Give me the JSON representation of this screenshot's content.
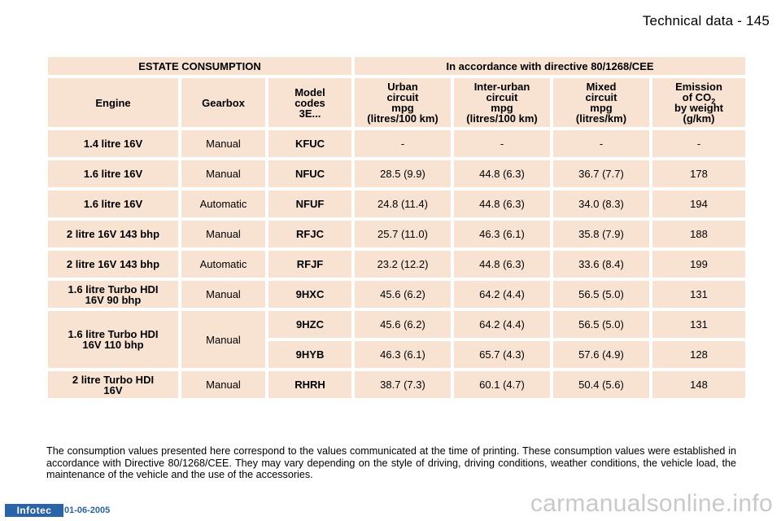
{
  "header": {
    "title": "Technical data - 145"
  },
  "table": {
    "banner_left": "ESTATE CONSUMPTION",
    "banner_right": "In accordance with directive 80/1268/CEE",
    "columns": {
      "engine": "Engine",
      "gearbox": "Gearbox",
      "model_l1": "Model",
      "model_l2": "codes",
      "model_l3": "3E...",
      "urban_l1": "Urban",
      "urban_l2": "circuit",
      "urban_l3": "mpg",
      "urban_l4": "(litres/100 km)",
      "inter_l1": "Inter-urban",
      "inter_l2": "circuit",
      "inter_l3": "mpg",
      "inter_l4": "(litres/100 km)",
      "mixed_l1": "Mixed",
      "mixed_l2": "circuit",
      "mixed_l3": "mpg",
      "mixed_l4": "(litres/km)",
      "emission_l1": "Emission",
      "emission_l2": "of CO",
      "emission_sub": "2",
      "emission_l3": "by weight",
      "emission_l4": "(g/km)"
    },
    "rows": [
      {
        "engine_l1": "1.4 litre 16V",
        "engine_l2": "",
        "gearbox": "Manual",
        "code": "KFUC",
        "urban": "-",
        "inter": "-",
        "mixed": "-",
        "co2": "-"
      },
      {
        "engine_l1": "1.6 litre 16V",
        "engine_l2": "",
        "gearbox": "Manual",
        "code": "NFUC",
        "urban": "28.5 (9.9)",
        "inter": "44.8 (6.3)",
        "mixed": "36.7 (7.7)",
        "co2": "178"
      },
      {
        "engine_l1": "1.6 litre 16V",
        "engine_l2": "",
        "gearbox": "Automatic",
        "code": "NFUF",
        "urban": "24.8 (11.4)",
        "inter": "44.8 (6.3)",
        "mixed": "34.0 (8.3)",
        "co2": "194"
      },
      {
        "engine_l1": "2 litre 16V 143 bhp",
        "engine_l2": "",
        "gearbox": "Manual",
        "code": "RFJC",
        "urban": "25.7 (11.0)",
        "inter": "46.3 (6.1)",
        "mixed": "35.8 (7.9)",
        "co2": "188"
      },
      {
        "engine_l1": "2 litre 16V 143 bhp",
        "engine_l2": "",
        "gearbox": "Automatic",
        "code": "RFJF",
        "urban": "23.2 (12.2)",
        "inter": "44.8 (6.3)",
        "mixed": "33.6 (8.4)",
        "co2": "199"
      },
      {
        "engine_l1": "1.6 litre Turbo HDI",
        "engine_l2": "16V 90 bhp",
        "gearbox": "Manual",
        "code": "9HXC",
        "urban": "45.6 (6.2)",
        "inter": "64.2 (4.4)",
        "mixed": "56.5 (5.0)",
        "co2": "131"
      },
      {
        "engine_l1": "1.6 litre Turbo HDI",
        "engine_l2": "16V 110 bhp",
        "gearbox": "Manual",
        "code": "9HZC",
        "urban": "45.6 (6.2)",
        "inter": "64.2 (4.4)",
        "mixed": "56.5 (5.0)",
        "co2": "131"
      },
      {
        "code": "9HYB",
        "urban": "46.3 (6.1)",
        "inter": "65.7 (4.3)",
        "mixed": "57.6 (4.9)",
        "co2": "128"
      },
      {
        "engine_l1": "2 litre Turbo HDI",
        "engine_l2": "16V",
        "gearbox": "Manual",
        "code": "RHRH",
        "urban": "38.7 (7.3)",
        "inter": "60.1 (4.7)",
        "mixed": "50.4 (5.6)",
        "co2": "148"
      }
    ]
  },
  "footnote": "The consumption values presented here correspond to the values communicated at the time of printing. These consumption values were established in accordance with Directive 80/1268/CEE. They may vary depending on the style of driving, driving conditions, weather conditions, the vehicle load, the maintenance of the vehicle and the use of the accessories.",
  "footer": {
    "logo": "Infotec",
    "date": "01-06-2005",
    "watermark": "carmanualsonline.info"
  }
}
